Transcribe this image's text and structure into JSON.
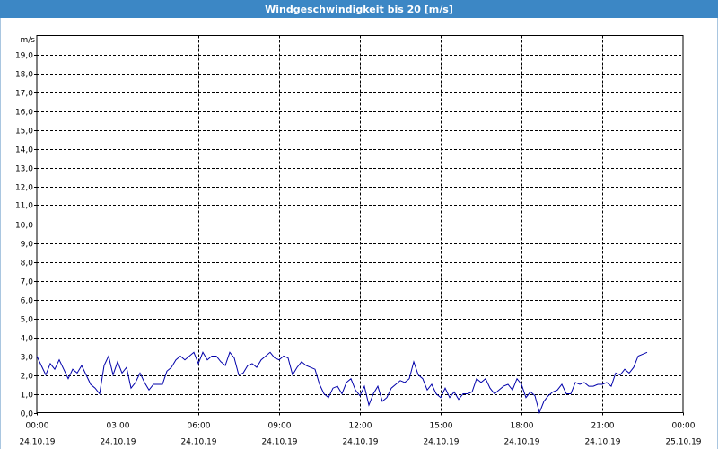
{
  "window": {
    "title": "Windgeschwindigkeit bis 20 [m/s]"
  },
  "chart_data": {
    "type": "line",
    "title": "Windgeschwindigkeit bis 20 [m/s]",
    "ylabel": "m/s",
    "xlabel": "",
    "ylim": [
      0,
      20
    ],
    "ytick_step": 1,
    "yticks": [
      "0,0",
      "1,0",
      "2,0",
      "3,0",
      "4,0",
      "5,0",
      "6,0",
      "7,0",
      "8,0",
      "9,0",
      "10,0",
      "11,0",
      "12,0",
      "13,0",
      "14,0",
      "15,0",
      "16,0",
      "17,0",
      "18,0",
      "19,0"
    ],
    "xlim_hours": [
      0,
      24
    ],
    "xticks": [
      {
        "time": "00:00",
        "date": "24.10.19"
      },
      {
        "time": "03:00",
        "date": "24.10.19"
      },
      {
        "time": "06:00",
        "date": "24.10.19"
      },
      {
        "time": "09:00",
        "date": "24.10.19"
      },
      {
        "time": "12:00",
        "date": "24.10.19"
      },
      {
        "time": "15:00",
        "date": "24.10.19"
      },
      {
        "time": "18:00",
        "date": "24.10.19"
      },
      {
        "time": "21:00",
        "date": "24.10.19"
      },
      {
        "time": "00:00",
        "date": "25.10.19"
      }
    ],
    "grid": true,
    "color": "#0000aa",
    "series": [
      {
        "x_start": "24.10.19 00:00",
        "x_interval_minutes": 10,
        "values": [
          3.0,
          2.5,
          2.0,
          2.6,
          2.3,
          2.8,
          2.3,
          1.8,
          2.3,
          2.1,
          2.5,
          2.0,
          1.5,
          1.3,
          1.0,
          2.5,
          3.0,
          2.0,
          2.7,
          2.1,
          2.4,
          1.3,
          1.6,
          2.1,
          1.6,
          1.2,
          1.5,
          1.5,
          1.5,
          2.2,
          2.4,
          2.8,
          3.0,
          2.8,
          3.0,
          3.2,
          2.6,
          3.2,
          2.8,
          3.0,
          3.0,
          2.7,
          2.5,
          3.2,
          2.9,
          2.0,
          2.1,
          2.5,
          2.6,
          2.4,
          2.8,
          3.0,
          3.2,
          2.9,
          2.8,
          3.0,
          2.9,
          2.0,
          2.4,
          2.7,
          2.5,
          2.4,
          2.3,
          1.5,
          1.0,
          0.8,
          1.3,
          1.4,
          1.0,
          1.6,
          1.8,
          1.2,
          0.9,
          1.4,
          0.4,
          1.0,
          1.4,
          0.6,
          0.8,
          1.3,
          1.5,
          1.7,
          1.6,
          1.8,
          2.7,
          2.0,
          1.8,
          1.2,
          1.5,
          1.0,
          0.8,
          1.3,
          0.8,
          1.1,
          0.7,
          1.0,
          1.0,
          1.1,
          1.8,
          1.6,
          1.8,
          1.3,
          1.0,
          1.2,
          1.4,
          1.5,
          1.2,
          1.8,
          1.5,
          0.8,
          1.1,
          0.9,
          0.0,
          0.6,
          0.9,
          1.1,
          1.2,
          1.5,
          1.0,
          1.0,
          1.6,
          1.5,
          1.6,
          1.4,
          1.4,
          1.5,
          1.5,
          1.6,
          1.4,
          2.1,
          2.0,
          2.3,
          2.1,
          2.4,
          3.0,
          3.1,
          3.2
        ]
      }
    ]
  }
}
